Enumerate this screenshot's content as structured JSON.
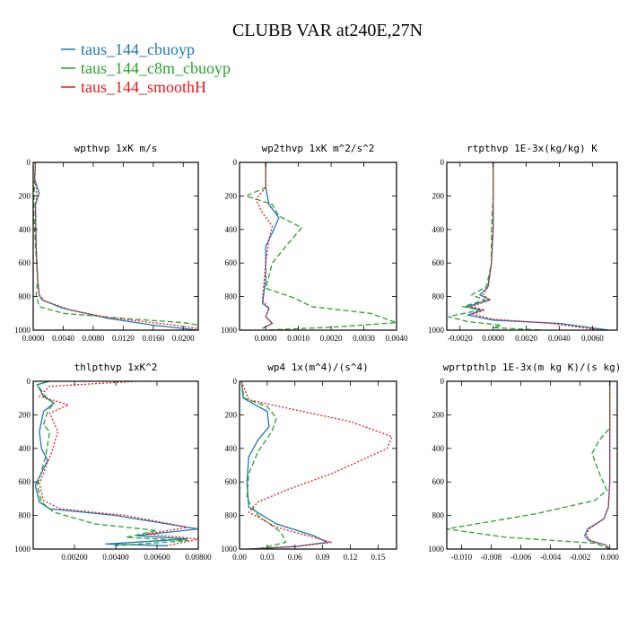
{
  "figure": {
    "title": "CLUBB VAR at240E,27N",
    "legend": [
      {
        "label": "taus_144_cbuoyp",
        "color": "#1f77b4"
      },
      {
        "label": "taus_144_c8m_cbuoyp",
        "color": "#2ca02c"
      },
      {
        "label": "taus_144_smoothH",
        "color": "#e31a1c"
      }
    ]
  },
  "chart_data": [
    {
      "type": "line",
      "title": "wpthvp   1xK m/s",
      "xlim": [
        0,
        0.022
      ],
      "ylim": [
        0,
        1000
      ],
      "xticks": [
        0.0,
        0.004,
        0.008,
        0.012,
        0.016,
        0.02
      ],
      "xtick_labels": [
        "0.0000",
        "0.0040",
        "0.0080",
        "0.0120",
        "0.0160",
        "0.0200"
      ],
      "yticks": [
        0,
        200,
        400,
        600,
        800,
        1000
      ],
      "ytick_labels": [
        "0",
        "200",
        "400",
        "600",
        "800",
        "1000"
      ],
      "series": [
        {
          "name": "taus_144_cbuoyp",
          "color": "#1f77b4",
          "dash": "solid",
          "x": [
            0.0003,
            0.0002,
            0.0008,
            0.0003,
            0.0004,
            0.0006,
            0.0008,
            0.0012,
            0.004,
            0.01,
            0.016,
            0.022
          ],
          "y": [
            0,
            100,
            185,
            250,
            500,
            700,
            790,
            820,
            870,
            930,
            970,
            1000
          ]
        },
        {
          "name": "taus_144_c8m_cbuoyp",
          "color": "#2ca02c",
          "dash": "dashed",
          "x": [
            0.0003,
            0.0002,
            0.0001,
            0.0001,
            0.0003,
            0.0006,
            0.0004,
            0.0008,
            0.004,
            0.012,
            0.02,
            0.022
          ],
          "y": [
            0,
            100,
            200,
            300,
            500,
            700,
            790,
            860,
            900,
            930,
            955,
            970
          ]
        },
        {
          "name": "taus_144_smoothH",
          "color": "#e31a1c",
          "dash": "dotted",
          "x": [
            0.0003,
            0.0002,
            0.0005,
            0.0003,
            0.0004,
            0.0006,
            0.0008,
            0.0015,
            0.005,
            0.01,
            0.018,
            0.022
          ],
          "y": [
            0,
            100,
            190,
            250,
            500,
            700,
            790,
            825,
            880,
            925,
            965,
            990
          ]
        }
      ]
    },
    {
      "type": "line",
      "title": "wp2thvp   1xK m^2/s^2",
      "xlim": [
        -0.0008,
        0.004
      ],
      "ylim": [
        0,
        1000
      ],
      "xticks": [
        0.0,
        0.001,
        0.002,
        0.003,
        0.004
      ],
      "xtick_labels": [
        "0.0000",
        "0.0010",
        "0.0020",
        "0.0030",
        "0.0040"
      ],
      "yticks": [
        0,
        200,
        400,
        600,
        800,
        1000
      ],
      "ytick_labels": [
        "0",
        "200",
        "400",
        "600",
        "800",
        "1000"
      ],
      "series": [
        {
          "name": "taus_144_cbuoyp",
          "color": "#1f77b4",
          "dash": "solid",
          "x": [
            0.0,
            0.0,
            0.0001,
            0.0004,
            0.0002,
            0.0,
            0.0,
            -0.0001,
            0.0001,
            0.0,
            0.0002,
            -0.0001
          ],
          "y": [
            0,
            150,
            250,
            330,
            420,
            500,
            700,
            840,
            870,
            920,
            960,
            990
          ]
        },
        {
          "name": "taus_144_c8m_cbuoyp",
          "color": "#2ca02c",
          "dash": "dashed",
          "x": [
            0.0,
            0.0,
            -0.0006,
            0.0002,
            0.0004,
            0.0011,
            0.0007,
            0.0002,
            0.0,
            0.0009,
            0.0014,
            0.0032,
            0.004,
            0.0022,
            0.0
          ],
          "y": [
            0,
            150,
            200,
            250,
            320,
            390,
            480,
            600,
            750,
            810,
            860,
            900,
            955,
            980,
            1000
          ]
        },
        {
          "name": "taus_144_smoothH",
          "color": "#e31a1c",
          "dash": "dotted",
          "x": [
            0.0,
            0.0,
            -0.0003,
            -0.0001,
            0.0002,
            0.0001,
            0.0,
            -0.0001,
            0.0001,
            0.0,
            0.0002,
            -0.0001
          ],
          "y": [
            0,
            150,
            220,
            300,
            380,
            460,
            600,
            820,
            870,
            920,
            960,
            990
          ]
        }
      ]
    },
    {
      "type": "line",
      "title": "rtpthvp   1E-3x(kg/kg) K",
      "xlim": [
        -0.0028,
        0.0075
      ],
      "ylim": [
        0,
        1000
      ],
      "xticks": [
        -0.002,
        0.0,
        0.002,
        0.004,
        0.006
      ],
      "xtick_labels": [
        "-0.0020",
        "0.0000",
        "0.0020",
        "0.0040",
        "0.0060"
      ],
      "yticks": [
        0,
        200,
        400,
        600,
        800,
        1000
      ],
      "ytick_labels": [
        "0",
        "200",
        "400",
        "600",
        "800",
        "1000"
      ],
      "series": [
        {
          "name": "taus_144_cbuoyp",
          "color": "#1f77b4",
          "dash": "solid",
          "x": [
            0.0,
            0.0,
            0.0,
            -0.0001,
            -0.0003,
            -0.0008,
            -0.0002,
            -0.0016,
            -0.0007,
            -0.0015,
            0.0,
            0.004,
            0.007
          ],
          "y": [
            0,
            200,
            400,
            600,
            740,
            790,
            820,
            860,
            880,
            910,
            940,
            960,
            1000
          ]
        },
        {
          "name": "taus_144_c8m_cbuoyp",
          "color": "#2ca02c",
          "dash": "dashed",
          "x": [
            0.0,
            0.0,
            -0.0001,
            -0.0001,
            -0.0004,
            -0.0013,
            -0.0005,
            -0.0018,
            -0.0008,
            -0.0027,
            -0.0015,
            0.0005,
            0.0,
            0.003
          ],
          "y": [
            0,
            200,
            400,
            600,
            740,
            790,
            820,
            860,
            880,
            920,
            950,
            970,
            985,
            1000
          ]
        },
        {
          "name": "taus_144_smoothH",
          "color": "#e31a1c",
          "dash": "dotted",
          "x": [
            0.0,
            0.0,
            0.0,
            -0.0001,
            -0.0003,
            -0.0006,
            -0.0002,
            -0.0013,
            -0.0005,
            -0.0012,
            0.0,
            0.0035,
            0.0065
          ],
          "y": [
            0,
            200,
            400,
            600,
            740,
            790,
            820,
            860,
            880,
            905,
            935,
            960,
            1000
          ]
        }
      ]
    },
    {
      "type": "line",
      "title": "thlpthvp   1xK^2",
      "xlim": [
        0,
        0.008
      ],
      "ylim": [
        0,
        1000
      ],
      "xticks": [
        0.002,
        0.004,
        0.006,
        0.008
      ],
      "xtick_labels": [
        "0.00200",
        "0.00400",
        "0.00600",
        "0.00800"
      ],
      "yticks": [
        0,
        200,
        400,
        600,
        800,
        1000
      ],
      "ytick_labels": [
        "0",
        "200",
        "400",
        "600",
        "800",
        "1000"
      ],
      "series": [
        {
          "name": "taus_144_cbuoyp",
          "color": "#1f77b4",
          "dash": "solid",
          "x": [
            0.0008,
            0.0002,
            0.0005,
            0.001,
            0.0005,
            0.0003,
            0.0004,
            0.0007,
            0.0001,
            0.0003,
            0.0008,
            0.004,
            0.008,
            0.005,
            0.0075,
            0.0035,
            0.0065
          ],
          "y": [
            0,
            20,
            90,
            130,
            180,
            300,
            400,
            470,
            620,
            720,
            760,
            800,
            880,
            920,
            940,
            970,
            980
          ]
        },
        {
          "name": "taus_144_c8m_cbuoyp",
          "color": "#2ca02c",
          "dash": "dashed",
          "x": [
            0.0008,
            0.0002,
            0.0006,
            0.001,
            0.0007,
            0.0005,
            0.0008,
            0.0006,
            0.0002,
            0.0004,
            0.001,
            0.003,
            0.006,
            0.0045,
            0.0075,
            0.004
          ],
          "y": [
            0,
            20,
            90,
            130,
            180,
            260,
            300,
            450,
            620,
            720,
            780,
            850,
            890,
            930,
            950,
            980
          ]
        },
        {
          "name": "taus_144_smoothH",
          "color": "#e31a1c",
          "dash": "dotted",
          "x": [
            0.005,
            0.0008,
            0.0003,
            0.0009,
            0.0017,
            0.0008,
            0.0012,
            0.0009,
            0.0003,
            0.0005,
            0.0013,
            0.0045,
            0.0075,
            0.0055,
            0.008,
            0.0065
          ],
          "y": [
            0,
            30,
            90,
            110,
            140,
            190,
            300,
            420,
            610,
            710,
            760,
            800,
            870,
            910,
            940,
            980
          ]
        }
      ]
    },
    {
      "type": "line",
      "title": "wp4   1x(m^4)/(s^4)",
      "xlim": [
        0,
        0.17
      ],
      "ylim": [
        0,
        1000
      ],
      "xticks": [
        0.0,
        0.03,
        0.06,
        0.09,
        0.12,
        0.15
      ],
      "xtick_labels": [
        "0.00",
        "0.03",
        "0.06",
        "0.09",
        "0.12",
        "0.15"
      ],
      "yticks": [
        0,
        200,
        400,
        600,
        800,
        1000
      ],
      "ytick_labels": [
        "0",
        "200",
        "400",
        "600",
        "800",
        "1000"
      ],
      "series": [
        {
          "name": "taus_144_cbuoyp",
          "color": "#1f77b4",
          "dash": "solid",
          "x": [
            0.002,
            0.004,
            0.03,
            0.032,
            0.02,
            0.01,
            0.008,
            0.01,
            0.04,
            0.08,
            0.095,
            0.06,
            0.01
          ],
          "y": [
            0,
            100,
            180,
            270,
            350,
            450,
            600,
            750,
            850,
            920,
            960,
            985,
            1000
          ]
        },
        {
          "name": "taus_144_c8m_cbuoyp",
          "color": "#2ca02c",
          "dash": "dashed",
          "x": [
            0.002,
            0.005,
            0.03,
            0.04,
            0.035,
            0.02,
            0.01,
            0.008,
            0.02,
            0.045,
            0.05,
            0.02
          ],
          "y": [
            0,
            100,
            150,
            220,
            300,
            420,
            550,
            700,
            800,
            900,
            960,
            1000
          ]
        },
        {
          "name": "taus_144_smoothH",
          "color": "#e31a1c",
          "dash": "dotted",
          "x": [
            0.002,
            0.01,
            0.06,
            0.12,
            0.165,
            0.16,
            0.1,
            0.05,
            0.02,
            0.01,
            0.04,
            0.08,
            0.1,
            0.06,
            0.01
          ],
          "y": [
            0,
            110,
            170,
            240,
            330,
            400,
            550,
            650,
            720,
            780,
            870,
            930,
            960,
            985,
            1000
          ]
        }
      ]
    },
    {
      "type": "line",
      "title": "wprtpthlp   1E-3x(m kg K)/(s kg)",
      "xlim": [
        -0.011,
        0.0005
      ],
      "ylim": [
        0,
        1000
      ],
      "xticks": [
        -0.01,
        -0.008,
        -0.006,
        -0.004,
        -0.002,
        0.0
      ],
      "xtick_labels": [
        "-0.010",
        "-0.008",
        "-0.006",
        "-0.004",
        "-0.002",
        "0.000"
      ],
      "yticks": [
        0,
        200,
        400,
        600,
        800,
        1000
      ],
      "ytick_labels": [
        "0",
        "200",
        "400",
        "600",
        "800",
        "1000"
      ],
      "series": [
        {
          "name": "taus_144_cbuoyp",
          "color": "#1f77b4",
          "dash": "solid",
          "x": [
            0.0,
            0.0,
            -0.0001,
            -0.0004,
            -0.0015,
            -0.0017,
            -0.0014,
            -0.0003,
            0.0
          ],
          "y": [
            0,
            600,
            750,
            820,
            880,
            920,
            950,
            975,
            1000
          ]
        },
        {
          "name": "taus_144_c8m_cbuoyp",
          "color": "#2ca02c",
          "dash": "dashed",
          "x": [
            0.0,
            0.0,
            -0.0007,
            -0.0012,
            -0.0007,
            -0.0002,
            -0.001,
            -0.005,
            -0.011,
            -0.007,
            -0.001,
            0.0
          ],
          "y": [
            0,
            280,
            350,
            430,
            550,
            650,
            710,
            790,
            880,
            930,
            965,
            1000
          ]
        },
        {
          "name": "taus_144_smoothH",
          "color": "#e31a1c",
          "dash": "dotted",
          "x": [
            0.0,
            0.0,
            -0.0001,
            -0.0004,
            -0.0014,
            -0.0016,
            -0.0013,
            -0.0003,
            0.0
          ],
          "y": [
            0,
            600,
            750,
            820,
            880,
            920,
            950,
            975,
            1000
          ]
        }
      ]
    }
  ]
}
